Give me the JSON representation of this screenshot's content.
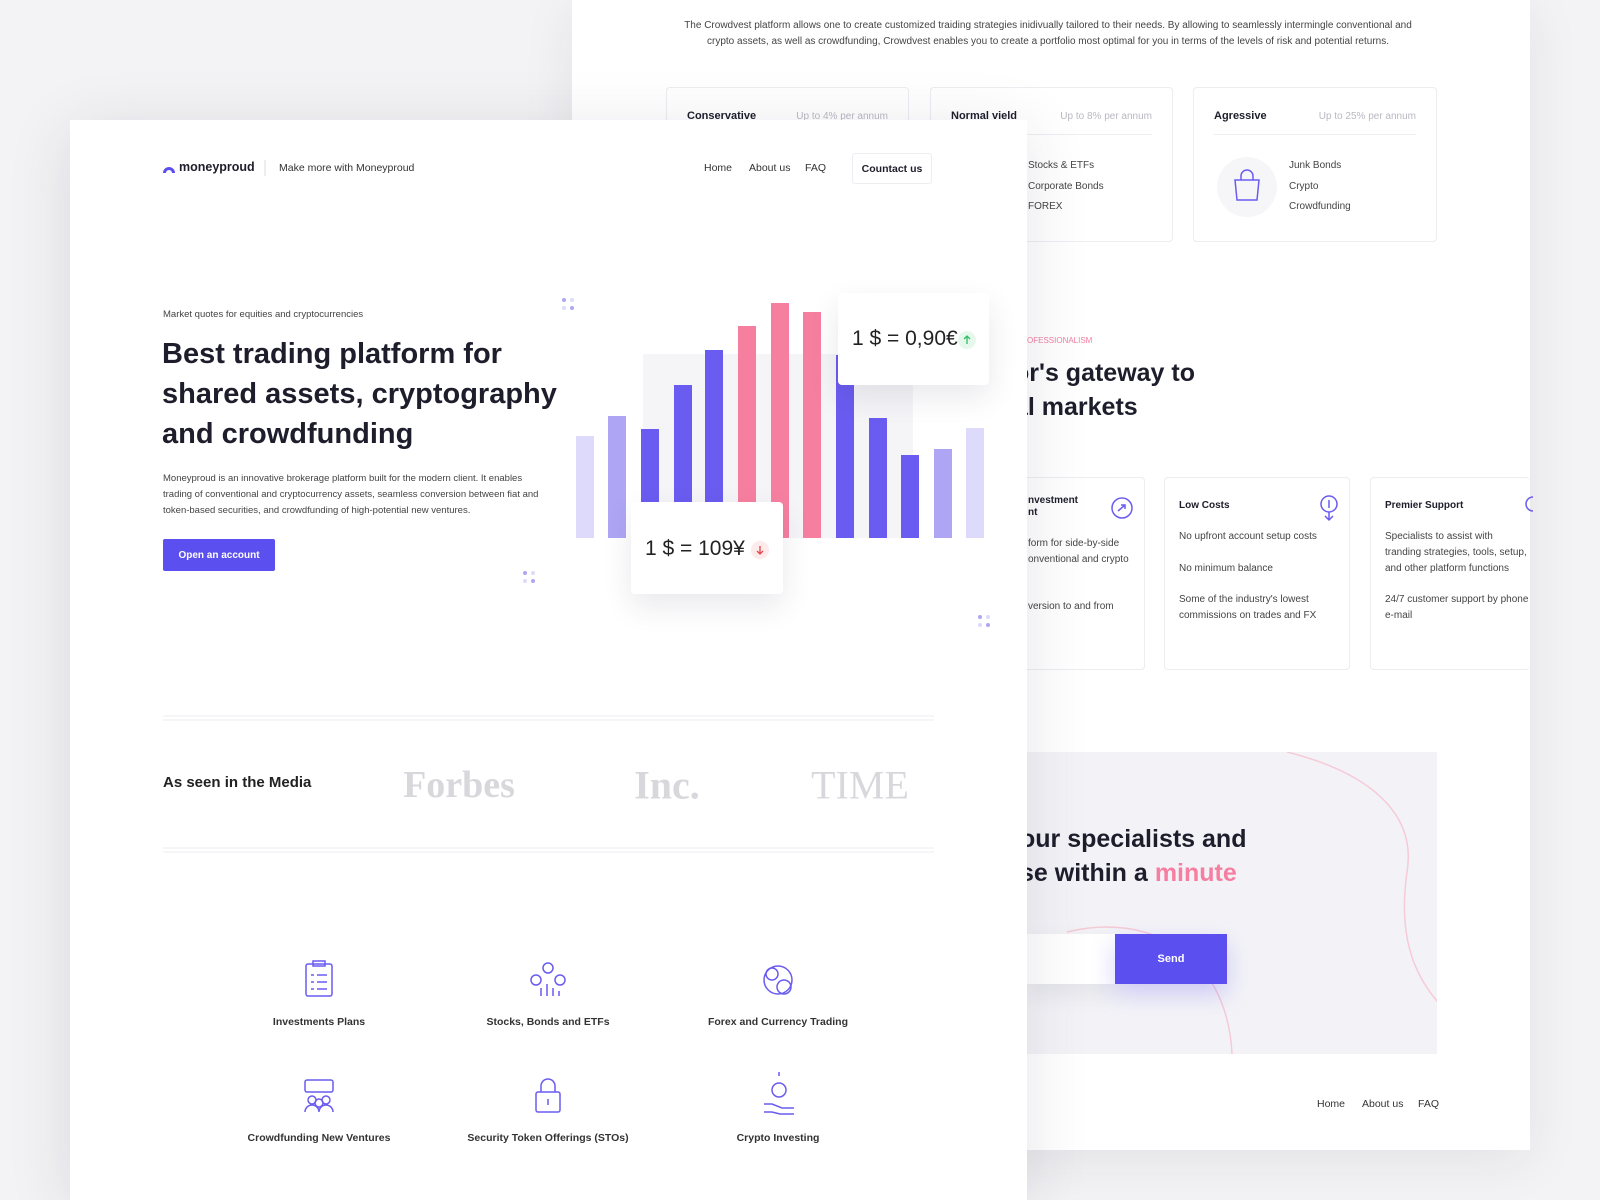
{
  "back_page": {
    "intro": [
      "The Crowdvest platform allows one to create customized traiding strategies inidivually tailored to their needs. By allowing to seamlessly intermingle conventional and",
      "crypto assets, as well as crowdfunding, Crowdvest enables you to create a portfolio most optimal for you in terms of the levels of risk and potential returns."
    ],
    "plans": [
      {
        "title": "Conservative",
        "rate": "Up to 4% per annum"
      },
      {
        "title": "Normal vield",
        "rate": "Up to 8% per annum",
        "items": [
          "Stocks & ETFs",
          "Corporate Bonds",
          "FOREX"
        ]
      },
      {
        "title": "Agressive",
        "rate": "Up to 25% per annum",
        "items": [
          "Junk Bonds",
          "Crypto",
          "Crowdfunding"
        ]
      }
    ],
    "section_label": "OFESSIONALISM",
    "heading": [
      "or's gateway to",
      "al markets"
    ],
    "features": [
      {
        "title": [
          "nvestment",
          "nt"
        ],
        "lines": [
          "form for side-by-side",
          "onventional and crypto",
          "version to and from"
        ]
      },
      {
        "title": [
          "Low Costs"
        ],
        "items": [
          "No upfront account setup costs",
          "No minimum balance",
          "Some of the industry's lowest commissions on trades and FX"
        ]
      },
      {
        "title": [
          "Premier Support"
        ],
        "items": [
          "Specialists to assist with tranding strategies, tools, setup, and other platform functions",
          "24/7 customer support by phone e-mail"
        ]
      }
    ],
    "cta": {
      "heading": [
        "our specialists and",
        "se within a"
      ],
      "highlight": "minute",
      "button": "Send"
    },
    "footer_nav": [
      "Home",
      "About us",
      "FAQ"
    ]
  },
  "front_page": {
    "logo": "moneyproud",
    "tagline": "Make more with Moneyproud",
    "nav": [
      "Home",
      "About us",
      "FAQ"
    ],
    "contact": "Countact us",
    "eyebrow": "Market quotes for equities and cryptocurrencies",
    "heading": [
      "Best trading platform for",
      "shared assets, cryptography",
      "and crowdfunding"
    ],
    "description": [
      "Moneyproud is an innovative brokerage platform built for the modern client. It enables",
      "trading of conventional and cryptocurrency assets, seamless conversion between fiat and",
      "token-based securities, and crowdfunding of high-potential new ventures."
    ],
    "button": "Open an account",
    "quotes": [
      "1 $ = 0,90€",
      "1 $ = 109¥"
    ],
    "media_title": "As seen in the Media",
    "media": [
      "Forbes",
      "Inc.",
      "TIME"
    ],
    "services": [
      "Investments Plans",
      "Stocks, Bonds and ETFs",
      "Forex and Currency Trading",
      "Crowdfunding New Ventures",
      "Security Token Offerings (STOs)",
      "Crypto Investing"
    ]
  }
}
